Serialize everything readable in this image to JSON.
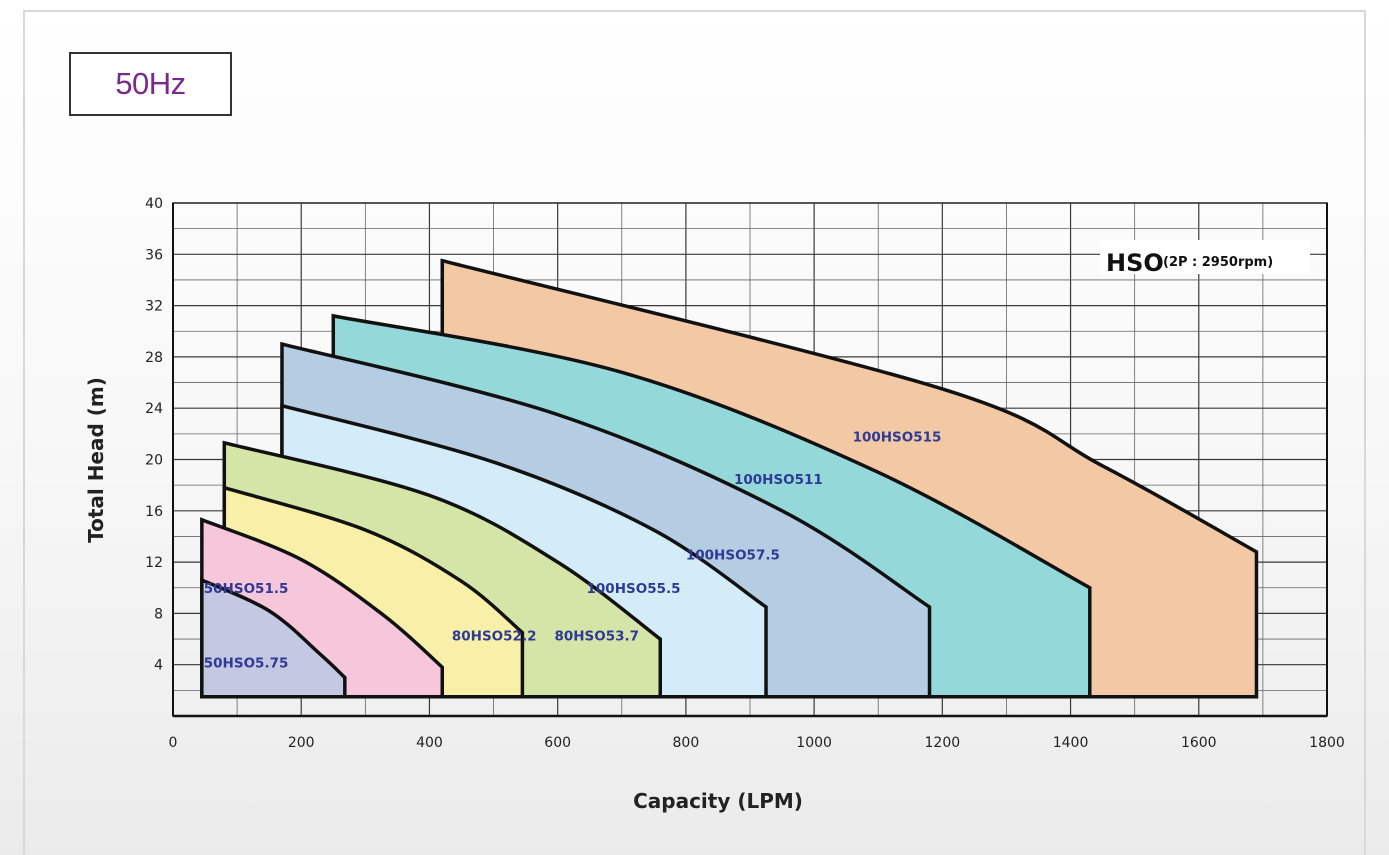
{
  "header": {
    "frequency_label": "50Hz"
  },
  "chart_data": {
    "type": "area",
    "title": "HSO",
    "subtitle": "(2P : 2950rpm)",
    "xlabel": "Capacity (LPM)",
    "ylabel": "Total Head (m)",
    "xlim": [
      0,
      1800
    ],
    "ylim": [
      0,
      40
    ],
    "x_ticks": [
      "0",
      "200",
      "400",
      "600",
      "800",
      "1000",
      "1200",
      "1400",
      "1600",
      "1800"
    ],
    "y_ticks": [
      "4",
      "8",
      "12",
      "16",
      "20",
      "24",
      "28",
      "32",
      "36",
      "40"
    ],
    "grid": true,
    "baseline": 1.5,
    "series": [
      {
        "name": "100HSO515",
        "color": "#f2c9a4",
        "points": [
          [
            420,
            35.5
          ],
          [
            1200,
            25.5
          ],
          [
            1450,
            19.5
          ],
          [
            1690,
            12.8
          ]
        ],
        "qmin": 420,
        "qmax": 1690,
        "left_top": 30
      },
      {
        "name": "100HSO511",
        "color": "#94d8d9",
        "points": [
          [
            250,
            31.2
          ],
          [
            700,
            26.8
          ],
          [
            1100,
            19
          ],
          [
            1430,
            10
          ]
        ],
        "qmin": 250,
        "qmax": 1430,
        "left_top": 28
      },
      {
        "name": "100HSO57.5",
        "color": "#b4cde2",
        "points": [
          [
            170,
            29
          ],
          [
            600,
            23.5
          ],
          [
            950,
            16
          ],
          [
            1180,
            8.5
          ]
        ],
        "qmin": 170,
        "qmax": 1180,
        "left_top": 24.2
      },
      {
        "name": "100HSO55.5",
        "color": "#d4ecf8",
        "points": [
          [
            170,
            24.2
          ],
          [
            500,
            19.8
          ],
          [
            750,
            14.5
          ],
          [
            925,
            8.5
          ]
        ],
        "qmin": 170,
        "qmax": 925,
        "left_top": 20.5
      },
      {
        "name": "80HSO53.7",
        "color": "#d5e5a8",
        "points": [
          [
            80,
            21.3
          ],
          [
            400,
            17.2
          ],
          [
            600,
            12
          ],
          [
            760,
            6
          ]
        ],
        "qmin": 80,
        "qmax": 760,
        "left_top": 17.8
      },
      {
        "name": "80HSO52.2",
        "color": "#f8f0a8",
        "points": [
          [
            80,
            17.8
          ],
          [
            300,
            14.5
          ],
          [
            450,
            10.5
          ],
          [
            545,
            6.5
          ]
        ],
        "qmin": 80,
        "qmax": 545,
        "left_top": 14
      },
      {
        "name": "50HSO51.5",
        "color": "#f6c6db",
        "points": [
          [
            45,
            15.3
          ],
          [
            200,
            12.2
          ],
          [
            330,
            7.8
          ],
          [
            420,
            3.8
          ]
        ],
        "qmin": 45,
        "qmax": 420,
        "left_top": 10.6
      },
      {
        "name": "50HSO5.75",
        "color": "#c4c8e3",
        "points": [
          [
            45,
            10.6
          ],
          [
            150,
            8.2
          ],
          [
            230,
            4.8
          ],
          [
            268,
            3
          ]
        ],
        "qmin": 45,
        "qmax": 268,
        "left_top": 10.6
      }
    ],
    "labels": [
      {
        "text": "100HSO515",
        "x": 1060,
        "y": 21.4
      },
      {
        "text": "100HSO511",
        "x": 875,
        "y": 18.1
      },
      {
        "text": "100HSO57.5",
        "x": 800,
        "y": 12.2
      },
      {
        "text": "100HSO55.5",
        "x": 645,
        "y": 9.6
      },
      {
        "text": "80HSO53.7",
        "x": 595,
        "y": 5.9
      },
      {
        "text": "80HSO52.2",
        "x": 435,
        "y": 5.9
      },
      {
        "text": "50HSO51.5",
        "x": 48,
        "y": 9.6
      },
      {
        "text": "50HSO5.75",
        "x": 48,
        "y": 3.8
      }
    ]
  }
}
